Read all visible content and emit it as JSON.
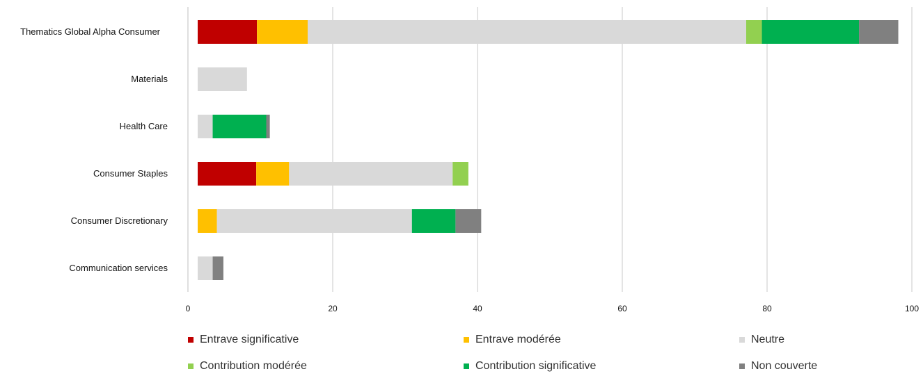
{
  "chart_data": {
    "type": "bar",
    "orientation": "horizontal",
    "stacked": true,
    "categories": [
      "Thematics Global Alpha Consumer",
      "Materials",
      "Health Care",
      "Consumer Staples",
      "Consumer Discretionary",
      "Communication services"
    ],
    "series": [
      {
        "name": "Entrave significative",
        "color": "#c00000",
        "values": [
          8.3,
          0,
          0,
          8.2,
          0,
          0
        ]
      },
      {
        "name": "Entrave modérée",
        "color": "#ffc000",
        "values": [
          7.1,
          0,
          0,
          4.6,
          2.7,
          0
        ]
      },
      {
        "name": "Neutre",
        "color": "#d9d9d9",
        "values": [
          61.4,
          6.9,
          2.1,
          22.9,
          27.3,
          2.1
        ]
      },
      {
        "name": "Contribution modérée",
        "color": "#92d050",
        "values": [
          2.2,
          0,
          0,
          2.2,
          0,
          0
        ]
      },
      {
        "name": "Contribution significative",
        "color": "#00b050",
        "values": [
          13.6,
          0,
          7.5,
          0,
          6.1,
          0
        ]
      },
      {
        "name": "Non couverte",
        "color": "#808080",
        "values": [
          5.5,
          0,
          0.5,
          0,
          3.6,
          1.5
        ]
      }
    ],
    "xlim": [
      0,
      100
    ],
    "xticks": [
      "0",
      "20",
      "40",
      "60",
      "80",
      "100"
    ],
    "grid": "vertical",
    "legend_position": "bottom"
  }
}
